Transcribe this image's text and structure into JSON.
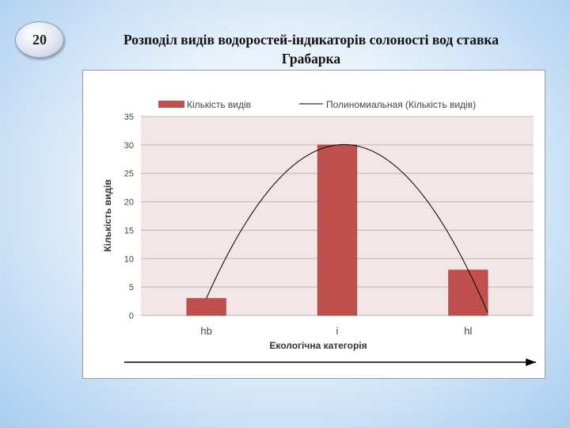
{
  "slide": {
    "number": "20",
    "title_line1": "Розподіл видів водоростей-індикаторів солоності вод ставка",
    "title_line2": "Грабарка"
  },
  "chart_data": {
    "type": "bar",
    "categories": [
      "hb",
      "i",
      "hl"
    ],
    "series": [
      {
        "name": "Кількість видів",
        "values": [
          3,
          30,
          8
        ],
        "color": "#c0504d"
      }
    ],
    "trendline": {
      "name": "Полиномиальная (Кількість видів)",
      "type": "polynomial",
      "color": "#000000"
    },
    "xlabel": "Екологічна категорія",
    "ylabel": "Кількість видів",
    "ylim": [
      0,
      35
    ],
    "yticks": [
      0,
      5,
      10,
      15,
      20,
      25,
      30,
      35
    ],
    "grid": true,
    "legend_position": "top",
    "plot_background": "#f2e6e6"
  }
}
